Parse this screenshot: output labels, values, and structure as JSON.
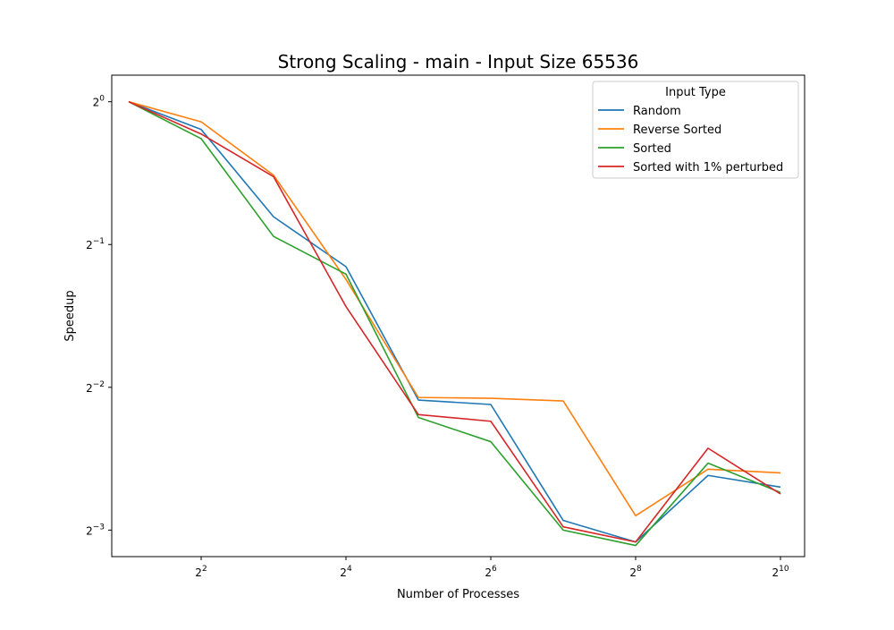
{
  "chart_data": {
    "type": "line",
    "title": "Strong Scaling - main - Input Size 65536",
    "xlabel": "Number of Processes",
    "ylabel": "Speedup",
    "x_scale": "log2",
    "y_scale": "log2",
    "x": [
      2,
      4,
      8,
      16,
      32,
      64,
      128,
      256,
      512,
      1024
    ],
    "xlim": [
      1.7,
      1290
    ],
    "ylim": [
      0.1099,
      1.1376
    ],
    "x_ticks": [
      {
        "base": "2",
        "exp": "2",
        "value": 4
      },
      {
        "base": "2",
        "exp": "4",
        "value": 16
      },
      {
        "base": "2",
        "exp": "6",
        "value": 64
      },
      {
        "base": "2",
        "exp": "8",
        "value": 256
      },
      {
        "base": "2",
        "exp": "10",
        "value": 1024
      }
    ],
    "y_ticks": [
      {
        "base": "2",
        "exp": "0",
        "value": 1
      },
      {
        "base": "2",
        "exp": "−1",
        "value": 0.5
      },
      {
        "base": "2",
        "exp": "−2",
        "value": 0.25
      },
      {
        "base": "2",
        "exp": "−3",
        "value": 0.125
      }
    ],
    "legend": {
      "title": "Input Type",
      "position": "top-right"
    },
    "grid": false,
    "series": [
      {
        "name": "Random",
        "color": "#1f77b4",
        "values": [
          1.0,
          0.874,
          0.572,
          0.449,
          0.235,
          0.23,
          0.131,
          0.118,
          0.163,
          0.154
        ]
      },
      {
        "name": "Reverse Sorted",
        "color": "#ff7f0e",
        "values": [
          1.0,
          0.907,
          0.7,
          0.422,
          0.238,
          0.237,
          0.234,
          0.134,
          0.168,
          0.165
        ]
      },
      {
        "name": "Sorted",
        "color": "#2ca02c",
        "values": [
          1.0,
          0.836,
          0.52,
          0.433,
          0.216,
          0.192,
          0.125,
          0.116,
          0.173,
          0.15
        ]
      },
      {
        "name": "Sorted with 1% perturbed",
        "color": "#d62728",
        "values": [
          1.0,
          0.855,
          0.695,
          0.37,
          0.219,
          0.212,
          0.127,
          0.118,
          0.186,
          0.149
        ]
      }
    ]
  }
}
